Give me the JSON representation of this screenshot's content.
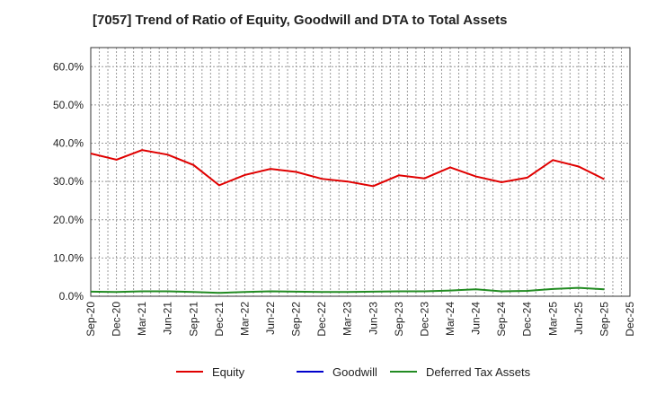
{
  "chart_data": {
    "type": "line",
    "title": "[7057]  Trend of Ratio of Equity, Goodwill and DTA to Total Assets",
    "xlabel": "",
    "ylabel": "",
    "ylim": [
      0,
      65
    ],
    "yticks": [
      0,
      10,
      20,
      30,
      40,
      50,
      60
    ],
    "ytick_labels": [
      "0.0%",
      "10.0%",
      "20.0%",
      "30.0%",
      "40.0%",
      "50.0%",
      "60.0%"
    ],
    "x": [
      "Sep-20",
      "Dec-20",
      "Mar-21",
      "Jun-21",
      "Sep-21",
      "Dec-21",
      "Mar-22",
      "Jun-22",
      "Sep-22",
      "Dec-22",
      "Mar-23",
      "Jun-23",
      "Sep-23",
      "Dec-23",
      "Mar-24",
      "Jun-24",
      "Sep-24",
      "Dec-24",
      "Mar-25",
      "Jun-25",
      "Sep-25",
      "Dec-25"
    ],
    "grid": true,
    "legend_position": "bottom",
    "series": [
      {
        "name": "Equity",
        "color": "#e00000",
        "values": [
          37.3,
          35.7,
          38.2,
          37.0,
          34.3,
          29.0,
          31.7,
          33.3,
          32.5,
          30.7,
          30.0,
          28.8,
          31.6,
          30.8,
          33.7,
          31.3,
          29.8,
          31.0,
          35.6,
          33.9,
          30.6,
          null
        ]
      },
      {
        "name": "Goodwill",
        "color": "#0000cc",
        "values": [
          null,
          null,
          null,
          null,
          null,
          null,
          null,
          null,
          null,
          null,
          null,
          null,
          null,
          null,
          null,
          null,
          null,
          null,
          null,
          null,
          null,
          null
        ]
      },
      {
        "name": "Deferred Tax Assets",
        "color": "#228b22",
        "values": [
          1.2,
          1.1,
          1.3,
          1.3,
          1.1,
          0.9,
          1.1,
          1.3,
          1.2,
          1.1,
          1.1,
          1.2,
          1.3,
          1.3,
          1.5,
          1.8,
          1.3,
          1.4,
          1.9,
          2.2,
          1.8,
          null
        ]
      }
    ]
  }
}
